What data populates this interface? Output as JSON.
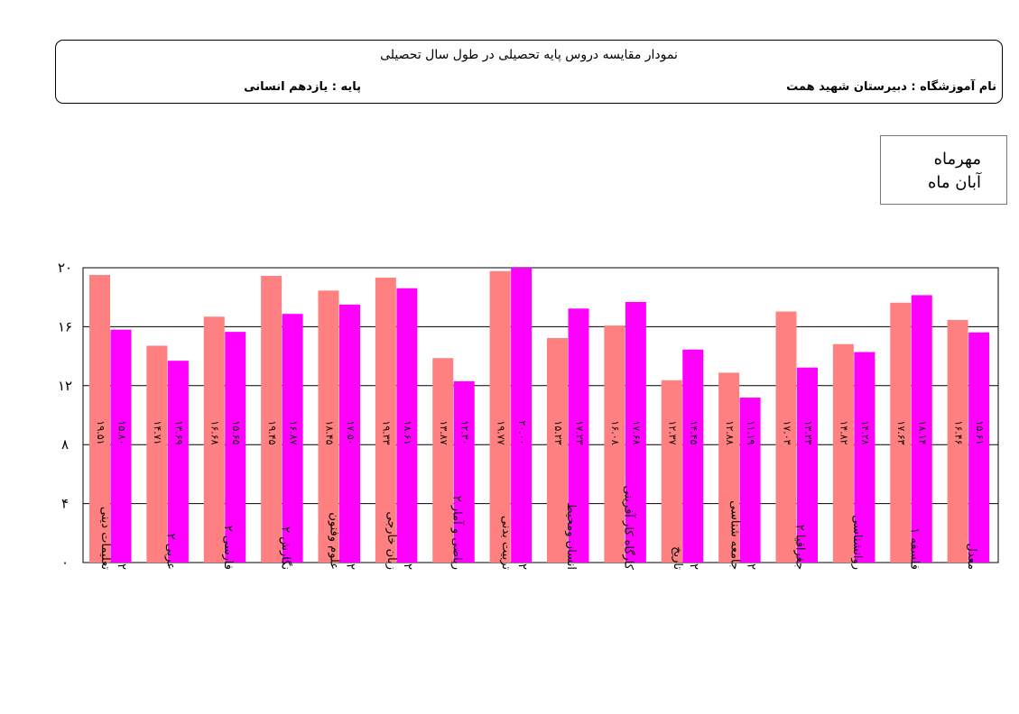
{
  "header": {
    "title": "نمودار مقایسه دروس پایه تحصیلی در طول سال تحصیلی",
    "school_label": "نام آموزشگاه :  دبیرستان شهید همت",
    "grade_label": "پایه : یازدهم انسانی"
  },
  "legend": [
    {
      "name": "مهرماه",
      "color": "#FF8080"
    },
    {
      "name": "آبان ماه",
      "color": "#FF00FF"
    }
  ],
  "chart_data": {
    "type": "bar",
    "title": "نمودار مقایسه دروس پایه تحصیلی در طول سال تحصیلی",
    "xlabel": "",
    "ylabel": "",
    "ylim": [
      0,
      20
    ],
    "yticks": [
      "۰",
      "۴",
      "۸",
      "۱۲",
      "۱۶",
      "۲۰"
    ],
    "grid": true,
    "legend_position": "top-right",
    "categories": [
      [
        "تعلیمات دینی",
        "۲"
      ],
      [
        "عربی ۲"
      ],
      [
        "فارسی ۲"
      ],
      [
        "نگارش ۲"
      ],
      [
        "علوم وفنون",
        "۲"
      ],
      [
        "زبان خارجی",
        "۲"
      ],
      [
        "ریاضی و آمار ۲"
      ],
      [
        "تربیت بدنی",
        "۲"
      ],
      [
        "انسان ومحیط"
      ],
      [
        "کارگاه کار آفرینی"
      ],
      [
        "تاریخ",
        "۲"
      ],
      [
        "جامعه شناسی",
        "۲"
      ],
      [
        "جغرافیا ۲"
      ],
      [
        "روانشناسی"
      ],
      [
        "فلسفه ۱"
      ],
      [
        "معدل"
      ]
    ],
    "series": [
      {
        "name": "مهرماه",
        "color": "#FF8080",
        "values": [
          19.51,
          14.71,
          16.68,
          19.45,
          18.45,
          19.33,
          13.87,
          19.77,
          15.23,
          16.08,
          12.37,
          12.88,
          17.03,
          14.82,
          17.63,
          16.46
        ],
        "labels": [
          "۱۹.۵۱",
          "۱۴.۷۱",
          "۱۶.۶۸",
          "۱۹.۴۵",
          "۱۸.۴۵",
          "۱۹.۳۳",
          "۱۳.۸۷",
          "۱۹.۷۷",
          "۱۵.۲۳",
          "۱۶.۰۸",
          "۱۲.۳۷",
          "۱۲.۸۸",
          "۱۷.۰۳",
          "۱۴.۸۲",
          "۱۷.۶۳",
          "۱۶.۴۶"
        ]
      },
      {
        "name": "آبان ماه",
        "color": "#FF00FF",
        "values": [
          15.8,
          13.69,
          15.65,
          16.87,
          17.5,
          18.61,
          12.3,
          20.0,
          17.23,
          17.68,
          14.45,
          11.19,
          13.23,
          14.28,
          18.14,
          15.61
        ],
        "labels": [
          "۱۵.۸۰",
          "۱۳.۶۹",
          "۱۵.۶۵",
          "۱۶.۸۷",
          "۱۷.۵۰",
          "۱۸.۶۱",
          "۱۲.۳۰",
          "۲۰.۰۰",
          "۱۷.۲۳",
          "۱۷.۶۸",
          "۱۴.۴۵",
          "۱۱.۱۹",
          "۱۳.۲۳",
          "۱۴.۲۸",
          "۱۸.۱۴",
          "۱۵.۶۱"
        ]
      }
    ]
  }
}
